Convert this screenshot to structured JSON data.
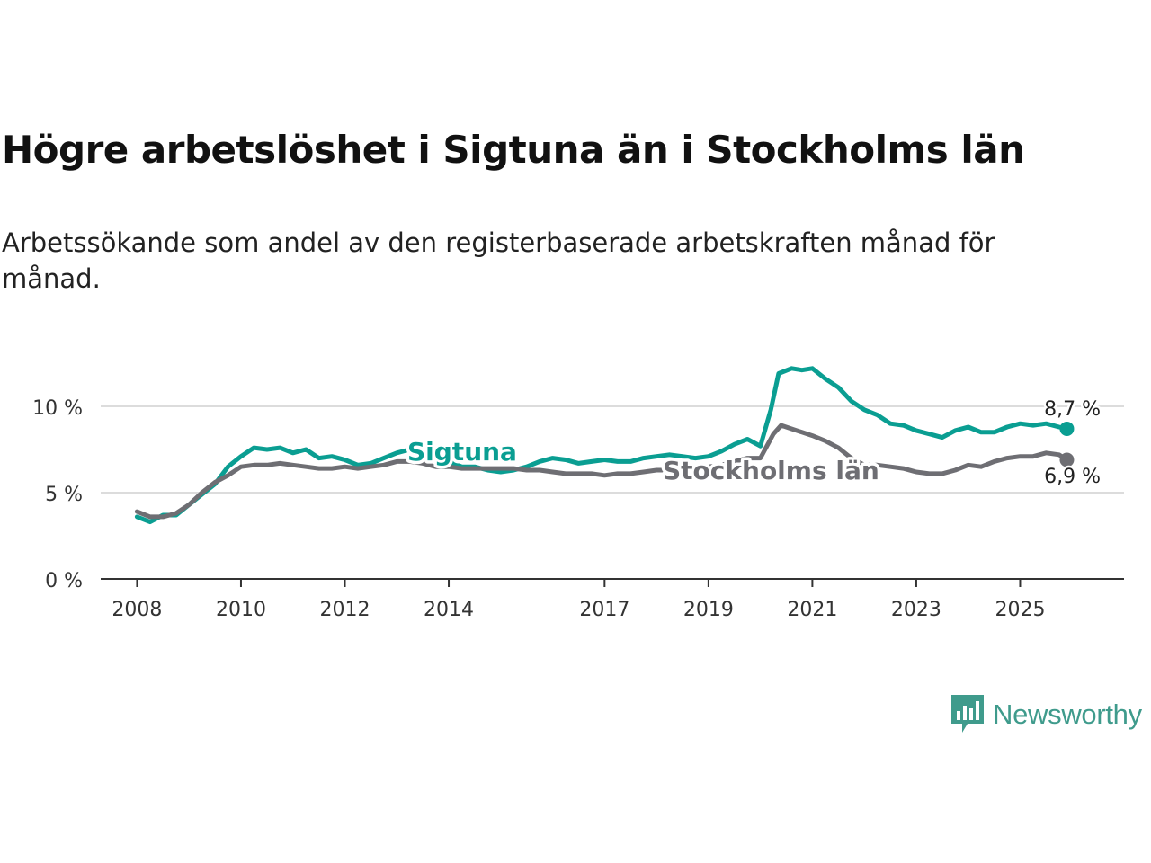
{
  "title": "Högre arbetslöshet i Sigtuna än i Stockholms län",
  "subtitle": "Arbetssökande som andel av den registerbaserade arbetskraften månad för månad.",
  "brand": {
    "name": "Newsworthy",
    "icon": "newsworthy-chart-bubble-icon",
    "color": "#3f9b8c"
  },
  "chart_data": {
    "type": "line",
    "title": "Högre arbetslöshet i Sigtuna än i Stockholms län",
    "xlabel": "",
    "ylabel": "",
    "xlim": [
      2007.3,
      2027.0
    ],
    "ylim": [
      0,
      12.5
    ],
    "y_ticks": [
      0,
      5,
      10
    ],
    "y_tick_labels": [
      "0 %",
      "5 %",
      "10 %"
    ],
    "x_ticks": [
      2008,
      2010,
      2012,
      2014,
      2017,
      2019,
      2021,
      2023,
      2025
    ],
    "x_tick_labels": [
      "2008",
      "2010",
      "2012",
      "2014",
      "2017",
      "2019",
      "2021",
      "2023",
      "2025"
    ],
    "grid": true,
    "series": [
      {
        "name": "Sigtuna",
        "color": "#0a9e92",
        "end_label": "8,7 %",
        "points": [
          [
            2008.0,
            3.6
          ],
          [
            2008.25,
            3.3
          ],
          [
            2008.5,
            3.7
          ],
          [
            2008.75,
            3.7
          ],
          [
            2009.0,
            4.3
          ],
          [
            2009.25,
            4.9
          ],
          [
            2009.5,
            5.5
          ],
          [
            2009.75,
            6.5
          ],
          [
            2010.0,
            7.1
          ],
          [
            2010.25,
            7.6
          ],
          [
            2010.5,
            7.5
          ],
          [
            2010.75,
            7.6
          ],
          [
            2011.0,
            7.3
          ],
          [
            2011.25,
            7.5
          ],
          [
            2011.5,
            7.0
          ],
          [
            2011.75,
            7.1
          ],
          [
            2012.0,
            6.9
          ],
          [
            2012.25,
            6.6
          ],
          [
            2012.5,
            6.7
          ],
          [
            2012.75,
            7.0
          ],
          [
            2013.0,
            7.3
          ],
          [
            2013.25,
            7.5
          ],
          [
            2013.5,
            7.3
          ],
          [
            2013.75,
            7.0
          ],
          [
            2014.0,
            6.8
          ],
          [
            2014.25,
            6.5
          ],
          [
            2014.5,
            6.5
          ],
          [
            2014.75,
            6.3
          ],
          [
            2015.0,
            6.2
          ],
          [
            2015.25,
            6.3
          ],
          [
            2015.5,
            6.5
          ],
          [
            2015.75,
            6.8
          ],
          [
            2016.0,
            7.0
          ],
          [
            2016.25,
            6.9
          ],
          [
            2016.5,
            6.7
          ],
          [
            2016.75,
            6.8
          ],
          [
            2017.0,
            6.9
          ],
          [
            2017.25,
            6.8
          ],
          [
            2017.5,
            6.8
          ],
          [
            2017.75,
            7.0
          ],
          [
            2018.0,
            7.1
          ],
          [
            2018.25,
            7.2
          ],
          [
            2018.5,
            7.1
          ],
          [
            2018.75,
            7.0
          ],
          [
            2019.0,
            7.1
          ],
          [
            2019.25,
            7.4
          ],
          [
            2019.5,
            7.8
          ],
          [
            2019.75,
            8.1
          ],
          [
            2020.0,
            7.7
          ],
          [
            2020.2,
            9.8
          ],
          [
            2020.35,
            11.9
          ],
          [
            2020.6,
            12.2
          ],
          [
            2020.8,
            12.1
          ],
          [
            2021.0,
            12.2
          ],
          [
            2021.25,
            11.6
          ],
          [
            2021.5,
            11.1
          ],
          [
            2021.75,
            10.3
          ],
          [
            2022.0,
            9.8
          ],
          [
            2022.25,
            9.5
          ],
          [
            2022.5,
            9.0
          ],
          [
            2022.75,
            8.9
          ],
          [
            2023.0,
            8.6
          ],
          [
            2023.25,
            8.4
          ],
          [
            2023.5,
            8.2
          ],
          [
            2023.75,
            8.6
          ],
          [
            2024.0,
            8.8
          ],
          [
            2024.25,
            8.5
          ],
          [
            2024.5,
            8.5
          ],
          [
            2024.75,
            8.8
          ],
          [
            2025.0,
            9.0
          ],
          [
            2025.25,
            8.9
          ],
          [
            2025.5,
            9.0
          ],
          [
            2025.75,
            8.8
          ],
          [
            2025.9,
            8.7
          ]
        ]
      },
      {
        "name": "Stockholms län",
        "color": "#6e6e73",
        "end_label": "6,9 %",
        "points": [
          [
            2008.0,
            3.9
          ],
          [
            2008.25,
            3.6
          ],
          [
            2008.5,
            3.6
          ],
          [
            2008.75,
            3.8
          ],
          [
            2009.0,
            4.3
          ],
          [
            2009.25,
            5.0
          ],
          [
            2009.5,
            5.6
          ],
          [
            2009.75,
            6.0
          ],
          [
            2010.0,
            6.5
          ],
          [
            2010.25,
            6.6
          ],
          [
            2010.5,
            6.6
          ],
          [
            2010.75,
            6.7
          ],
          [
            2011.0,
            6.6
          ],
          [
            2011.25,
            6.5
          ],
          [
            2011.5,
            6.4
          ],
          [
            2011.75,
            6.4
          ],
          [
            2012.0,
            6.5
          ],
          [
            2012.25,
            6.4
          ],
          [
            2012.5,
            6.5
          ],
          [
            2012.75,
            6.6
          ],
          [
            2013.0,
            6.8
          ],
          [
            2013.25,
            6.8
          ],
          [
            2013.5,
            6.7
          ],
          [
            2013.75,
            6.5
          ],
          [
            2014.0,
            6.5
          ],
          [
            2014.25,
            6.4
          ],
          [
            2014.5,
            6.4
          ],
          [
            2014.75,
            6.4
          ],
          [
            2015.0,
            6.4
          ],
          [
            2015.25,
            6.4
          ],
          [
            2015.5,
            6.3
          ],
          [
            2015.75,
            6.3
          ],
          [
            2016.0,
            6.2
          ],
          [
            2016.25,
            6.1
          ],
          [
            2016.5,
            6.1
          ],
          [
            2016.75,
            6.1
          ],
          [
            2017.0,
            6.0
          ],
          [
            2017.25,
            6.1
          ],
          [
            2017.5,
            6.1
          ],
          [
            2017.75,
            6.2
          ],
          [
            2018.0,
            6.3
          ],
          [
            2018.25,
            6.3
          ],
          [
            2018.5,
            6.3
          ],
          [
            2018.75,
            6.4
          ],
          [
            2019.0,
            6.5
          ],
          [
            2019.25,
            6.6
          ],
          [
            2019.5,
            6.8
          ],
          [
            2019.75,
            7.0
          ],
          [
            2020.0,
            7.0
          ],
          [
            2020.25,
            8.4
          ],
          [
            2020.4,
            8.9
          ],
          [
            2020.6,
            8.7
          ],
          [
            2020.8,
            8.5
          ],
          [
            2021.0,
            8.3
          ],
          [
            2021.25,
            8.0
          ],
          [
            2021.5,
            7.6
          ],
          [
            2021.75,
            7.0
          ],
          [
            2022.0,
            6.6
          ],
          [
            2022.25,
            6.6
          ],
          [
            2022.5,
            6.5
          ],
          [
            2022.75,
            6.4
          ],
          [
            2023.0,
            6.2
          ],
          [
            2023.25,
            6.1
          ],
          [
            2023.5,
            6.1
          ],
          [
            2023.75,
            6.3
          ],
          [
            2024.0,
            6.6
          ],
          [
            2024.25,
            6.5
          ],
          [
            2024.5,
            6.8
          ],
          [
            2024.75,
            7.0
          ],
          [
            2025.0,
            7.1
          ],
          [
            2025.25,
            7.1
          ],
          [
            2025.5,
            7.3
          ],
          [
            2025.75,
            7.2
          ],
          [
            2025.9,
            6.9
          ]
        ]
      }
    ]
  }
}
